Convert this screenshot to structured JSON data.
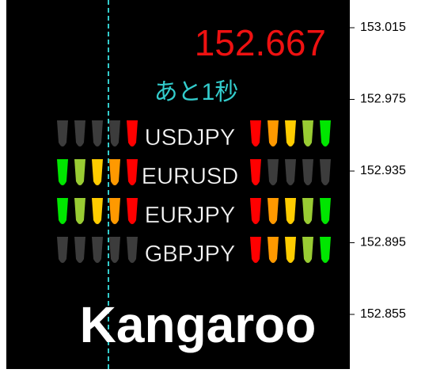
{
  "price": "152.667",
  "countdown": "あと1秒",
  "pairs": [
    {
      "name": "USDJPY",
      "left": [
        "#3c3c3c",
        "#3c3c3c",
        "#3c3c3c",
        "#3c3c3c",
        "#ff0000"
      ],
      "right": [
        "#ff0000",
        "#ff9900",
        "#ffcc00",
        "#99cc33",
        "#00e600"
      ]
    },
    {
      "name": "EURUSD",
      "left": [
        "#00e600",
        "#99cc33",
        "#ffcc00",
        "#ff9900",
        "#ff0000"
      ],
      "right": [
        "#ff0000",
        "#3c3c3c",
        "#3c3c3c",
        "#3c3c3c",
        "#3c3c3c"
      ]
    },
    {
      "name": "EURJPY",
      "left": [
        "#00e600",
        "#99cc33",
        "#ffcc00",
        "#ff9900",
        "#ff0000"
      ],
      "right": [
        "#ff0000",
        "#ff9900",
        "#ffcc00",
        "#99cc33",
        "#00e600"
      ]
    },
    {
      "name": "GBPJPY",
      "left": [
        "#3c3c3c",
        "#3c3c3c",
        "#3c3c3c",
        "#3c3c3c",
        "#3c3c3c"
      ],
      "right": [
        "#ff0000",
        "#ff9900",
        "#ffcc00",
        "#99cc33",
        "#00e600"
      ]
    }
  ],
  "brand": "Kangaroo",
  "price_axis": [
    "153.015",
    "152.975",
    "152.935",
    "152.895",
    "152.855"
  ]
}
